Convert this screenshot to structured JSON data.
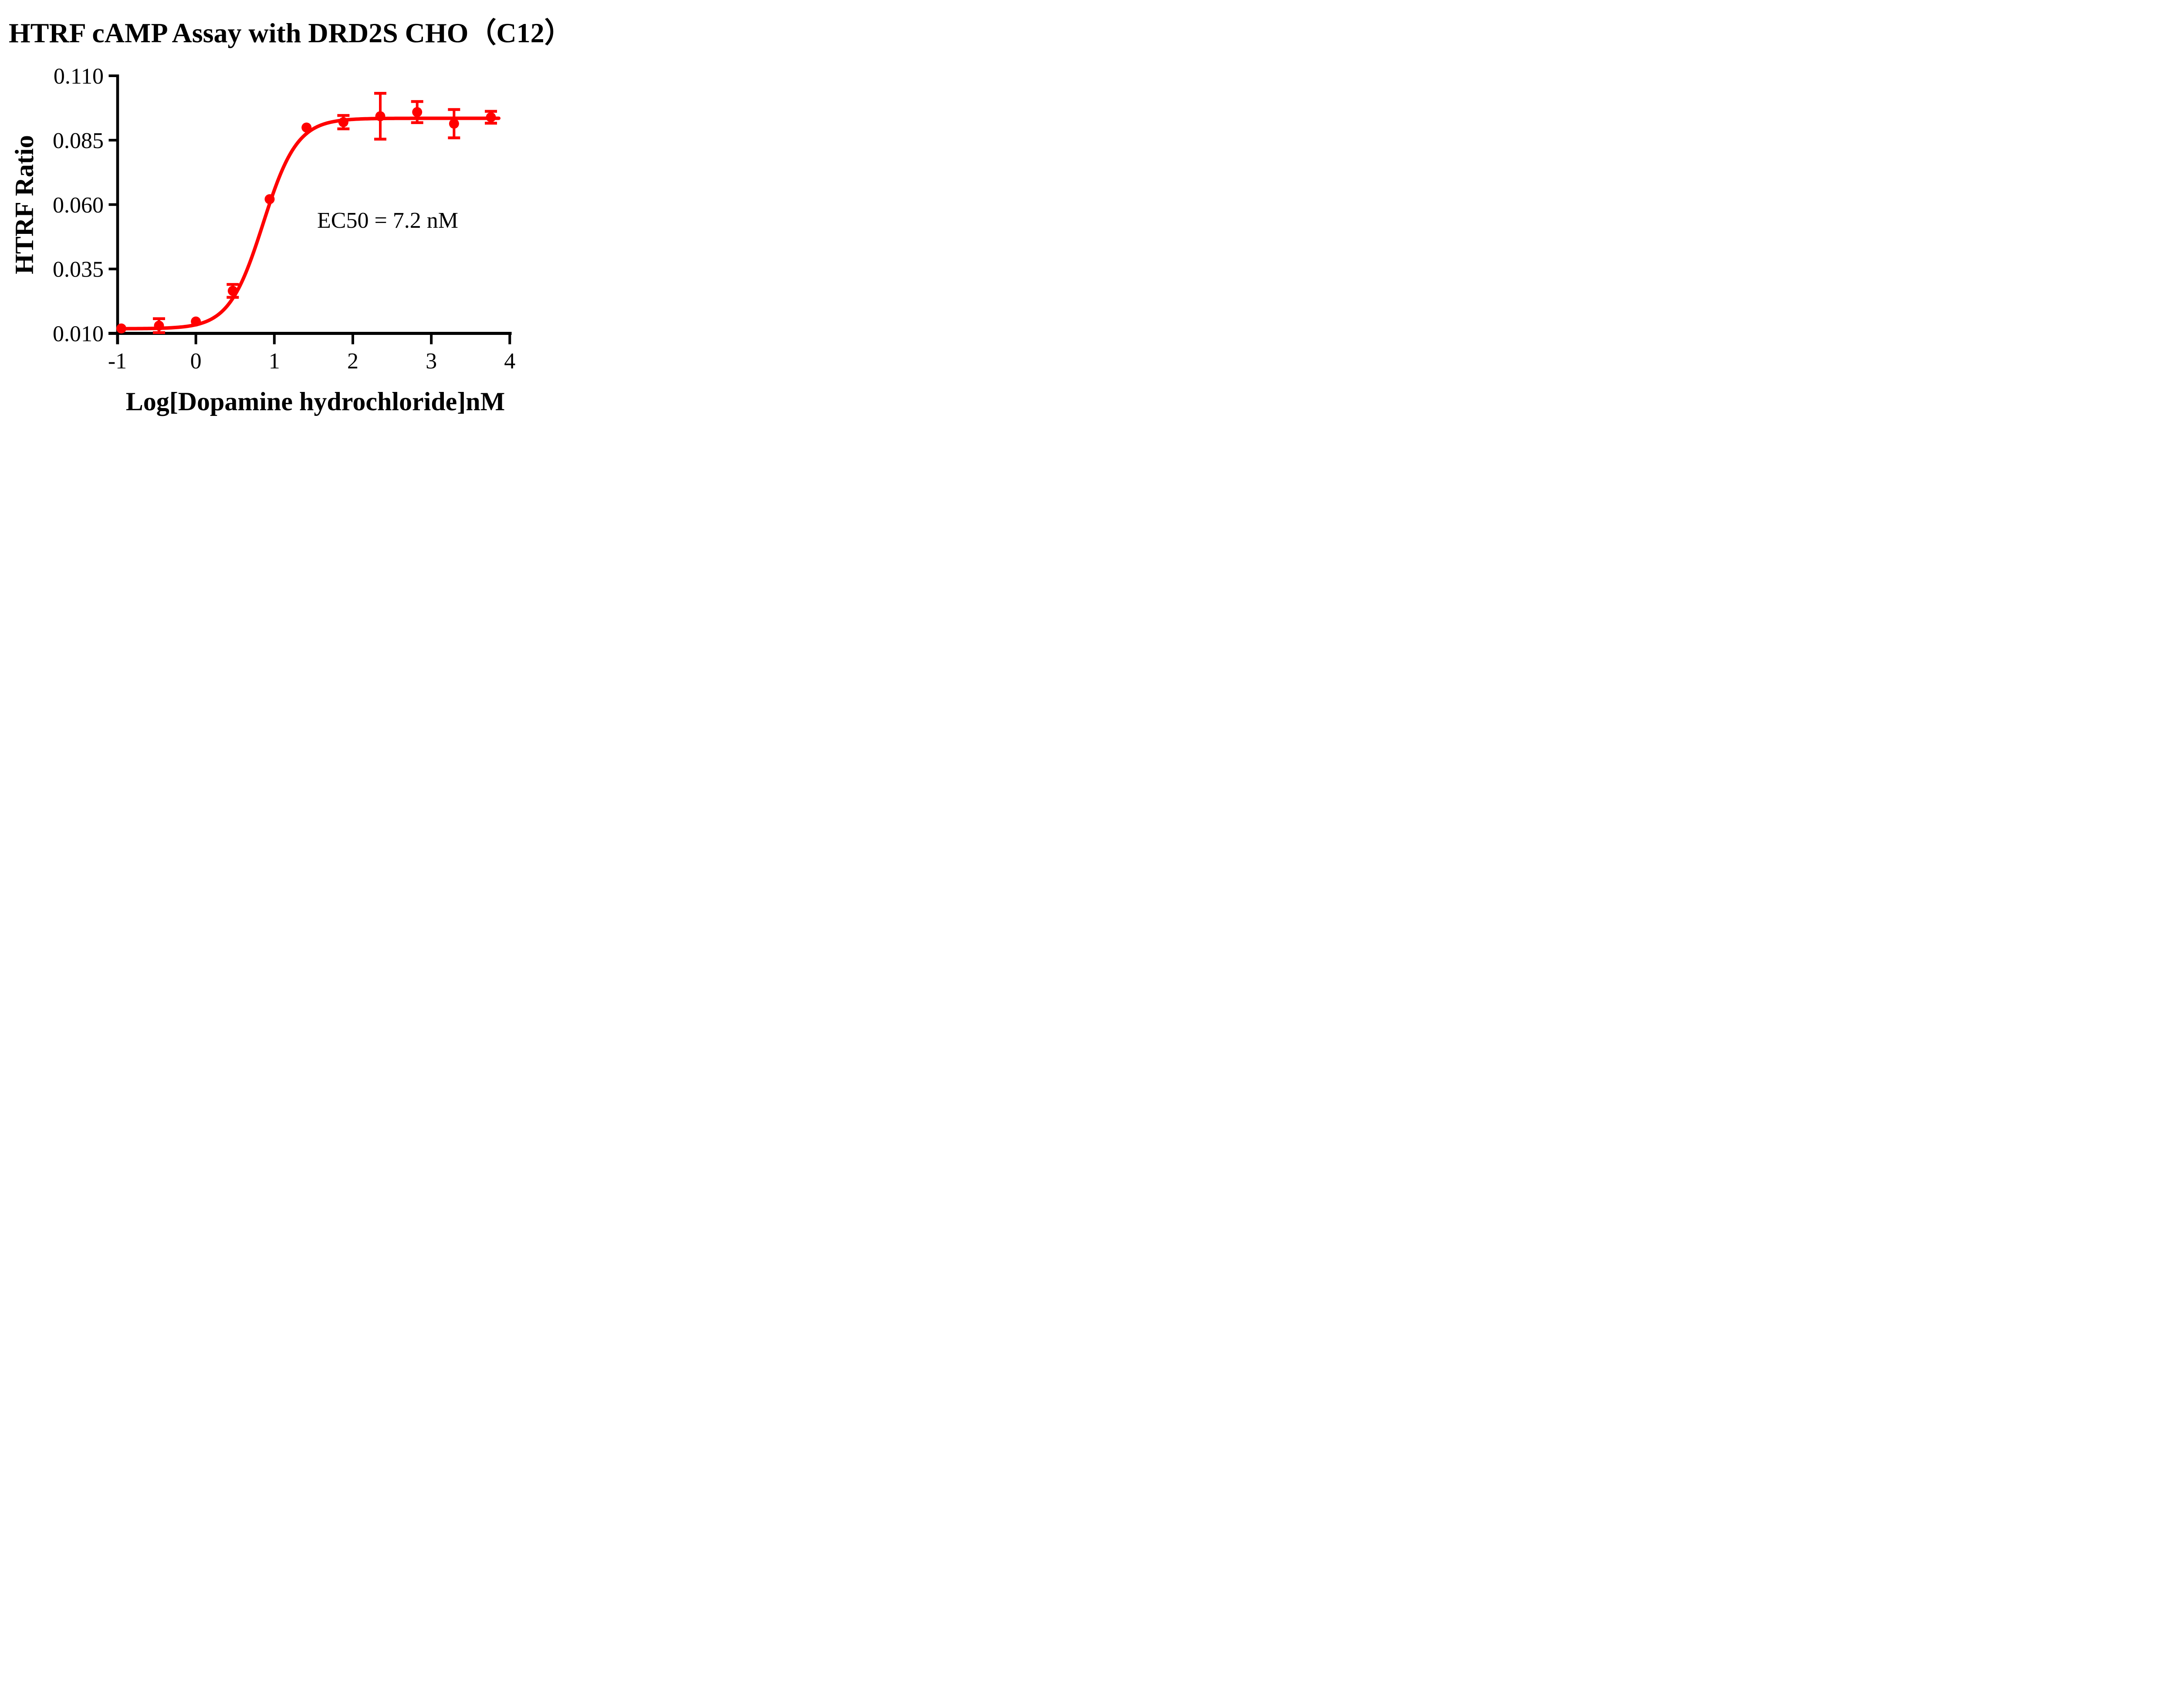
{
  "figure": {
    "title": "HTRF cAMP Assay with DRD2S CHO（C12）",
    "x_axis_label": "Log[Dopamine hydrochloride]nM",
    "y_axis_label": "HTRF Ratio",
    "annotation": "EC50 = 7.2 nM",
    "colors": {
      "curve": "#FF0000",
      "marker": "#FF0000",
      "axis": "#000000",
      "text": "#000000",
      "background": "#FFFFFF"
    }
  },
  "chart_data": {
    "type": "scatter",
    "title": "HTRF cAMP Assay with DRD2S CHO（C12）",
    "xlabel": "Log[Dopamine hydrochloride]nM",
    "ylabel": "HTRF Ratio",
    "annotation": "EC50 = 7.2 nM",
    "ec50_nM": 7.2,
    "xlim": [
      -1,
      4
    ],
    "ylim": [
      0.01,
      0.11
    ],
    "x_ticks": [
      -1,
      0,
      1,
      2,
      3,
      4
    ],
    "x_tick_labels": [
      "-1",
      "0",
      "1",
      "2",
      "3",
      "4"
    ],
    "y_ticks": [
      0.01,
      0.035,
      0.06,
      0.085,
      0.11
    ],
    "y_tick_labels": [
      "0.010",
      "0.035",
      "0.060",
      "0.085",
      "0.110"
    ],
    "grid": false,
    "legend": "none",
    "series": [
      {
        "name": "Dopamine hydrochloride",
        "marker": "circle",
        "error_bars": true,
        "points": [
          {
            "x": -0.95,
            "y": 0.0119,
            "err": 0
          },
          {
            "x": -0.47,
            "y": 0.013,
            "err": 0.0027
          },
          {
            "x": 0.0,
            "y": 0.0146,
            "err": 0
          },
          {
            "x": 0.47,
            "y": 0.0265,
            "err": 0.0025
          },
          {
            "x": 0.94,
            "y": 0.0621,
            "err": 0
          },
          {
            "x": 1.41,
            "y": 0.0899,
            "err": 0
          },
          {
            "x": 1.88,
            "y": 0.092,
            "err": 0.0026
          },
          {
            "x": 2.35,
            "y": 0.0943,
            "err": 0.0089
          },
          {
            "x": 2.82,
            "y": 0.0959,
            "err": 0.0041
          },
          {
            "x": 3.29,
            "y": 0.0914,
            "err": 0.0055
          },
          {
            "x": 3.76,
            "y": 0.0939,
            "err": 0.0023
          }
        ]
      }
    ],
    "fit": {
      "model": "4PL-sigmoid",
      "bottom": 0.0118,
      "top": 0.0935,
      "log_ec50": 0.857,
      "hill": 2.0,
      "x_start": -0.96,
      "x_end": 3.86
    }
  }
}
